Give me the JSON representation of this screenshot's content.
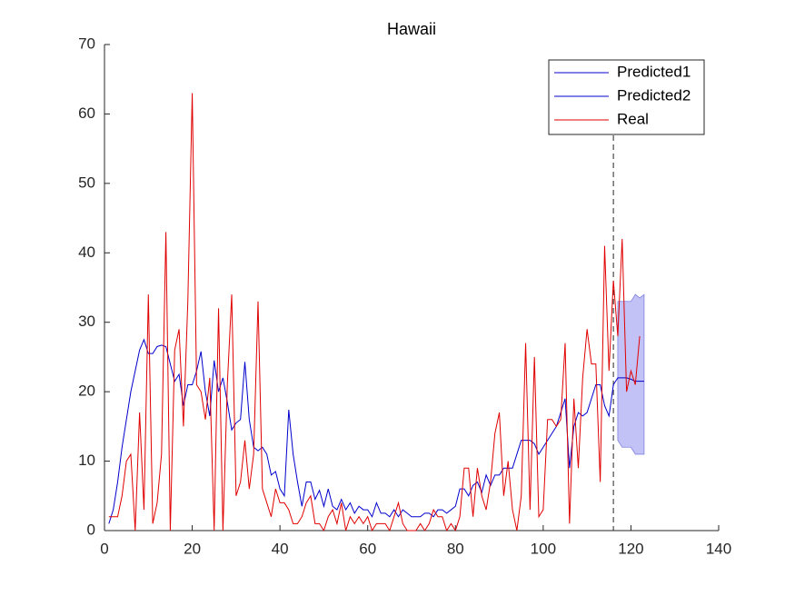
{
  "chart_data": {
    "type": "line",
    "title": "Hawaii",
    "xlim": [
      0,
      140
    ],
    "xticks": [
      0,
      20,
      40,
      60,
      80,
      100,
      120,
      140
    ],
    "ylim": [
      0,
      70
    ],
    "yticks": [
      0,
      10,
      20,
      30,
      40,
      50,
      60,
      70
    ],
    "grid": false,
    "legend": "northeast",
    "vlines": [
      116
    ],
    "band": {
      "color": "#b3b3f5",
      "x": [
        117,
        118,
        119,
        120,
        121,
        122,
        123
      ],
      "upper": [
        33,
        33,
        33,
        33,
        34,
        33.5,
        34
      ],
      "lower": [
        13,
        12,
        12,
        12,
        11,
        11,
        11
      ]
    },
    "series": [
      {
        "name": "Predicted1",
        "color": "#0000cc",
        "x": [
          1,
          2,
          3,
          4,
          5,
          6,
          7,
          8,
          9,
          10,
          11,
          12,
          13,
          14,
          15,
          16,
          17,
          18,
          19,
          20,
          21,
          22,
          23,
          24,
          25,
          26,
          27,
          28,
          29,
          30,
          31,
          32,
          33,
          34,
          35,
          36,
          37,
          38,
          39,
          40,
          41,
          42,
          43,
          44,
          45,
          46,
          47,
          48,
          49,
          50,
          51,
          52,
          53,
          54,
          55,
          56,
          57,
          58,
          59,
          60,
          61,
          62,
          63,
          64,
          65,
          66,
          67,
          68,
          69,
          70,
          71,
          72,
          73,
          74,
          75,
          76,
          77,
          78,
          79,
          80,
          81,
          82,
          83,
          84,
          85,
          86,
          87,
          88,
          89,
          90,
          91,
          92,
          93,
          94,
          95,
          96,
          97,
          98,
          99,
          100,
          101,
          102,
          103,
          104,
          105,
          106,
          107,
          108,
          109,
          110,
          111,
          112,
          113,
          114,
          115,
          116
        ],
        "values": [
          1,
          3,
          7,
          12,
          16,
          20,
          23,
          26,
          27.5,
          25.5,
          25.5,
          26.5,
          26.7,
          26.5,
          24,
          21.5,
          22.5,
          18,
          21,
          21,
          23,
          25.8,
          20,
          16.5,
          24.5,
          20,
          22,
          18.5,
          14.5,
          15.5,
          16,
          24.3,
          16,
          12,
          11.5,
          12,
          11,
          8,
          8.5,
          6,
          5,
          17.4,
          11,
          7,
          3.5,
          7,
          7,
          4.5,
          5.8,
          3.5,
          6,
          3.5,
          3,
          4.5,
          3,
          4,
          2.5,
          3.5,
          3,
          3,
          2,
          4,
          2.5,
          2.5,
          2,
          3,
          2,
          3,
          2.5,
          2,
          2,
          2,
          2.5,
          2.5,
          2,
          3,
          3,
          2.5,
          3,
          3.5,
          6,
          6,
          5,
          6.5,
          7,
          5.5,
          8,
          6.5,
          8,
          8,
          9,
          9,
          9,
          11,
          13,
          13,
          13,
          12.5,
          11,
          12,
          13,
          14,
          15,
          17,
          19,
          9,
          15,
          17,
          16.5,
          17,
          19,
          21,
          21,
          18,
          16.5,
          21
        ]
      },
      {
        "name": "Predicted2",
        "color": "#0000cc",
        "x": [
          116,
          117,
          118,
          119,
          120,
          121,
          122,
          123
        ],
        "values": [
          21,
          22,
          22,
          22,
          21.8,
          21.5,
          21.5,
          21.5
        ]
      },
      {
        "name": "Real",
        "color": "#e00000",
        "x": [
          1,
          2,
          3,
          4,
          5,
          6,
          7,
          8,
          9,
          10,
          11,
          12,
          13,
          14,
          15,
          16,
          17,
          18,
          19,
          20,
          21,
          22,
          23,
          24,
          25,
          26,
          27,
          28,
          29,
          30,
          31,
          32,
          33,
          34,
          35,
          36,
          37,
          38,
          39,
          40,
          41,
          42,
          43,
          44,
          45,
          46,
          47,
          48,
          49,
          50,
          51,
          52,
          53,
          54,
          55,
          56,
          57,
          58,
          59,
          60,
          61,
          62,
          63,
          64,
          65,
          66,
          67,
          68,
          69,
          70,
          71,
          72,
          73,
          74,
          75,
          76,
          77,
          78,
          79,
          80,
          81,
          82,
          83,
          84,
          85,
          86,
          87,
          88,
          89,
          90,
          91,
          92,
          93,
          94,
          95,
          96,
          97,
          98,
          99,
          100,
          101,
          102,
          103,
          104,
          105,
          106,
          107,
          108,
          109,
          110,
          111,
          112,
          113,
          114,
          115,
          116,
          117,
          118,
          119,
          120,
          121,
          122
        ],
        "values": [
          2,
          2,
          2,
          5,
          10,
          11,
          0,
          17,
          3,
          34,
          1,
          4,
          11,
          43,
          0,
          26,
          29,
          15,
          33,
          63,
          21,
          20,
          16,
          22,
          0,
          32,
          0,
          21,
          34,
          5,
          7,
          13,
          6,
          11,
          33,
          6,
          4,
          2,
          6,
          4,
          4,
          3,
          1,
          1,
          2,
          4,
          5,
          1,
          1,
          0,
          2,
          3,
          1,
          4,
          0,
          2,
          1,
          2,
          1,
          2,
          0,
          1,
          1,
          1,
          0,
          2,
          4,
          1,
          0,
          0,
          0,
          1,
          0,
          1,
          3,
          2,
          2,
          0,
          1,
          0,
          2,
          9,
          9,
          2,
          9,
          5,
          3,
          7,
          14,
          17,
          5,
          10,
          3,
          0,
          5,
          27,
          3,
          25,
          2,
          3,
          16,
          16,
          15,
          16,
          27,
          1,
          19,
          9,
          22,
          29,
          24,
          24,
          7,
          41,
          23,
          36,
          28,
          42,
          20,
          23,
          21,
          28
        ]
      }
    ]
  }
}
